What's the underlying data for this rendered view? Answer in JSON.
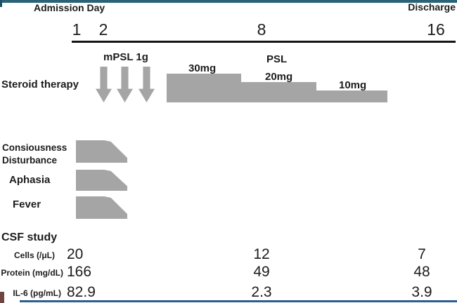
{
  "colors": {
    "bar_gray": "#a5a5a5",
    "top_rule": "#2a6378",
    "bottom_rule": "#2e5f8e",
    "text": "#1c1c1c"
  },
  "header": {
    "admission_label": "Admission Day",
    "discharge_label": "Discharge"
  },
  "timeline": {
    "ticks": [
      {
        "label": "1"
      },
      {
        "label": "2"
      },
      {
        "label": "8"
      },
      {
        "label": "16"
      }
    ]
  },
  "steroid_therapy": {
    "row_label": "Steroid therapy",
    "pulse_label": "mPSL 1g",
    "pulse_arrow_count": 3,
    "maintenance_label": "PSL",
    "steps": [
      {
        "dose": "30mg"
      },
      {
        "dose": "20mg"
      },
      {
        "dose": "10mg"
      }
    ]
  },
  "symptoms": [
    {
      "label_line1": "Consiousness",
      "label_line2": "Disturbance"
    },
    {
      "label_line1": "Aphasia"
    },
    {
      "label_line1": "Fever"
    }
  ],
  "csf_study": {
    "title": "CSF study",
    "rows": [
      {
        "label": "Cells (/μL)",
        "values": [
          "20",
          "12",
          "7"
        ]
      },
      {
        "label": "Protein (mg/dL)",
        "values": [
          "166",
          "49",
          "48"
        ]
      },
      {
        "label": "IL-6 (pg/mL)",
        "values": [
          "82.9",
          "2.3",
          "3.9"
        ]
      }
    ]
  }
}
